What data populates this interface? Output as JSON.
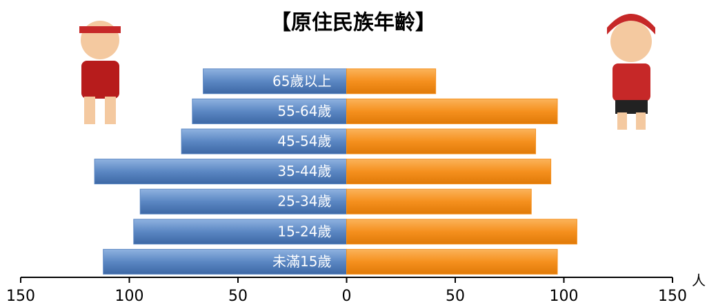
{
  "chart_data": {
    "type": "pyramid",
    "title": "【原住民族年齡】",
    "x_label": "人",
    "categories": [
      "65歲以上",
      "55-64歲",
      "45-54歲",
      "35-44歲",
      "25-34歲",
      "15-24歲",
      "未滿15歲"
    ],
    "series": [
      {
        "color": "#5b87c3",
        "values": [
          -66,
          -71,
          -76,
          -116,
          -95,
          -98,
          -112
        ]
      },
      {
        "color": "#f5901e",
        "values": [
          41,
          97,
          87,
          94,
          85,
          106,
          97
        ]
      }
    ],
    "xlim": [
      -150,
      150
    ],
    "xticks": [
      {
        "value": -150,
        "label": "150"
      },
      {
        "value": -100,
        "label": "100"
      },
      {
        "value": -50,
        "label": "50"
      },
      0,
      50,
      100,
      150
    ]
  }
}
